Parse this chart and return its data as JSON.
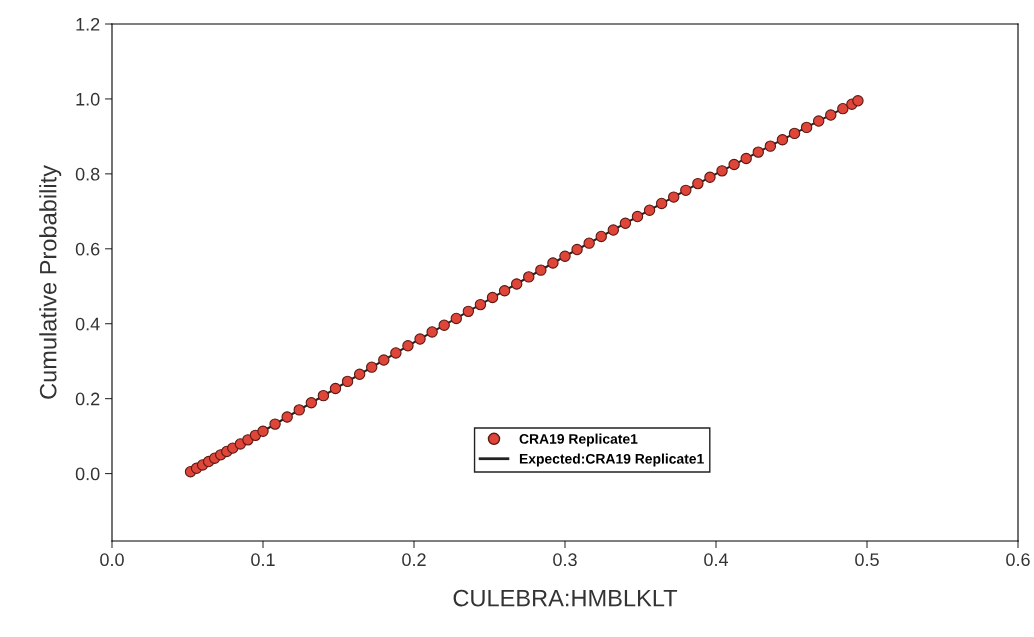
{
  "chart_data": {
    "type": "scatter",
    "xlabel": "CULEBRA:HMBLKLT",
    "ylabel": "Cumulative Probability",
    "xlim": [
      0.0,
      0.6
    ],
    "xticks": [
      {
        "value": 0.0,
        "label": "0.0"
      },
      0.1,
      0.2,
      0.3,
      0.4,
      0.5,
      0.6
    ],
    "ylim": [
      -0.18,
      1.2
    ],
    "yticks": [
      {
        "value": 0.0,
        "label": "0.0"
      },
      0.2,
      0.4,
      0.6,
      0.8,
      {
        "value": 1.0,
        "label": "1.0"
      },
      1.2
    ],
    "grid": false,
    "legend": "bottom",
    "series": [
      {
        "name": "CRA19 Replicate1",
        "marker": "circle",
        "color": "#e0453a",
        "x": [
          0.052,
          0.056,
          0.06,
          0.064,
          0.068,
          0.072,
          0.076,
          0.08,
          0.085,
          0.09,
          0.095,
          0.1,
          0.108,
          0.116,
          0.124,
          0.132,
          0.14,
          0.148,
          0.156,
          0.164,
          0.172,
          0.18,
          0.188,
          0.196,
          0.204,
          0.212,
          0.22,
          0.228,
          0.236,
          0.244,
          0.252,
          0.26,
          0.268,
          0.276,
          0.284,
          0.292,
          0.3,
          0.308,
          0.316,
          0.324,
          0.332,
          0.34,
          0.348,
          0.356,
          0.364,
          0.372,
          0.38,
          0.388,
          0.396,
          0.404,
          0.412,
          0.42,
          0.428,
          0.436,
          0.444,
          0.452,
          0.46,
          0.468,
          0.476,
          0.484,
          0.49,
          0.494
        ],
        "values": [
          0.005,
          0.014,
          0.023,
          0.032,
          0.041,
          0.05,
          0.059,
          0.068,
          0.079,
          0.09,
          0.102,
          0.113,
          0.132,
          0.151,
          0.17,
          0.189,
          0.208,
          0.227,
          0.246,
          0.265,
          0.284,
          0.303,
          0.322,
          0.341,
          0.359,
          0.378,
          0.396,
          0.414,
          0.433,
          0.451,
          0.47,
          0.488,
          0.506,
          0.525,
          0.543,
          0.562,
          0.58,
          0.598,
          0.615,
          0.633,
          0.65,
          0.668,
          0.686,
          0.703,
          0.721,
          0.738,
          0.756,
          0.774,
          0.791,
          0.808,
          0.825,
          0.841,
          0.858,
          0.874,
          0.891,
          0.908,
          0.924,
          0.941,
          0.957,
          0.974,
          0.986,
          0.995
        ]
      },
      {
        "name": "Expected:CRA19 Replicate1",
        "type": "line",
        "line_style": "solid",
        "color": "#222222",
        "x": [
          0.052,
          0.1,
          0.2,
          0.3,
          0.4,
          0.494
        ],
        "values": [
          0.005,
          0.113,
          0.35,
          0.58,
          0.8,
          0.995
        ]
      }
    ]
  }
}
